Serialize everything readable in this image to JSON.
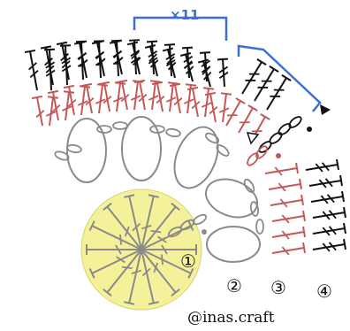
{
  "repeat_label": "×11",
  "round_labels": [
    "①",
    "②",
    "③",
    "④"
  ],
  "watermark": "@inas.craft",
  "colors": {
    "center_fill": "#f4f19a",
    "round1": "#8a8a8a",
    "round2": "#8a8a8a",
    "round3": "#c45858",
    "round4": "#111111",
    "bracket": "#3a6fd8",
    "marker": "#111111"
  },
  "stitch_symbols": {
    "center_spokes": "double-crochet",
    "round2": "chain-loop",
    "round3": "double-crochet",
    "round4": "treble-crochet"
  }
}
